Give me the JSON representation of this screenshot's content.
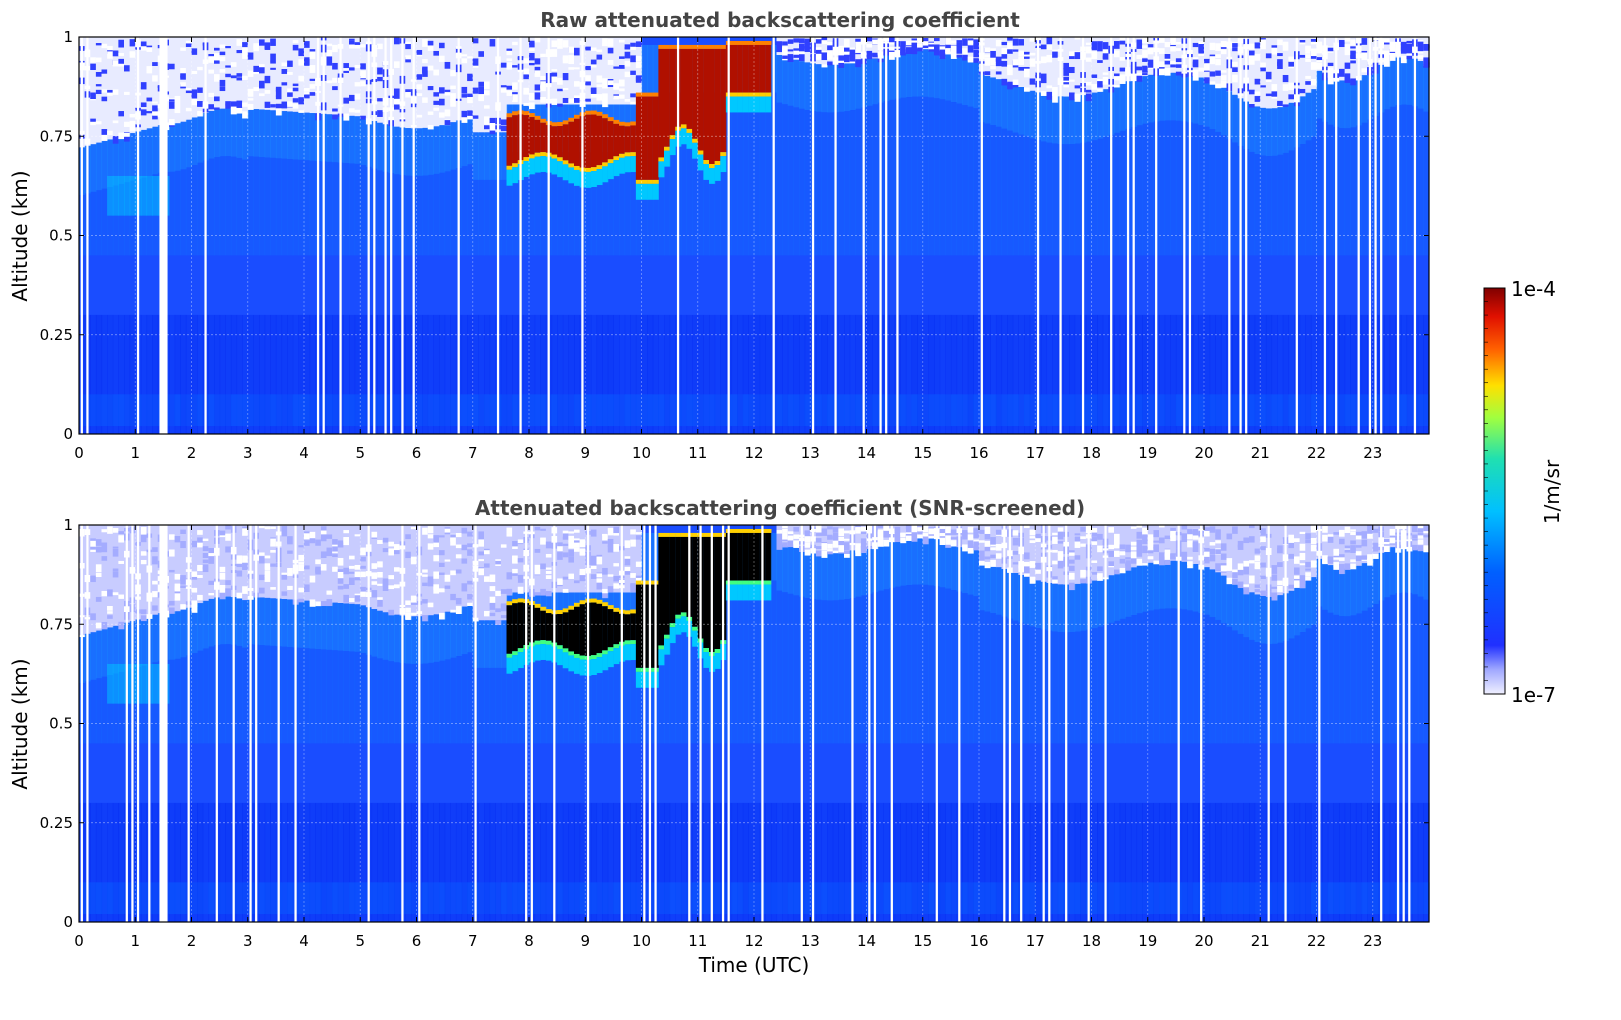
{
  "chart_data": [
    {
      "type": "heatmap",
      "title": "Raw attenuated backscattering coefficient",
      "xlabel": "",
      "ylabel": "Altitude (km)",
      "xlim": [
        0,
        24
      ],
      "ylim": [
        0,
        1
      ],
      "xticks": [
        "0",
        "1",
        "2",
        "3",
        "4",
        "5",
        "6",
        "7",
        "8",
        "9",
        "10",
        "11",
        "12",
        "13",
        "14",
        "15",
        "16",
        "17",
        "18",
        "19",
        "20",
        "21",
        "22",
        "23"
      ],
      "yticks": [
        "0",
        "0.25",
        "0.5",
        "0.75",
        "1"
      ],
      "grid": true,
      "screened": false,
      "cloud_base_km": 0.72,
      "cloud_hours": [
        7.6,
        12.3
      ]
    },
    {
      "type": "heatmap",
      "title": "Attenuated backscattering coefficient (SNR-screened)",
      "xlabel": "Time (UTC)",
      "ylabel": "Altitude (km)",
      "xlim": [
        0,
        24
      ],
      "ylim": [
        0,
        1
      ],
      "xticks": [
        "0",
        "1",
        "2",
        "3",
        "4",
        "5",
        "6",
        "7",
        "8",
        "9",
        "10",
        "11",
        "12",
        "13",
        "14",
        "15",
        "16",
        "17",
        "18",
        "19",
        "20",
        "21",
        "22",
        "23"
      ],
      "yticks": [
        "0",
        "0.25",
        "0.5",
        "0.75",
        "1"
      ],
      "grid": true,
      "screened": true,
      "cloud_base_km": 0.72,
      "cloud_hours": [
        7.6,
        12.3
      ]
    }
  ],
  "colorbar": {
    "label": "1/m/sr",
    "max_label": "1e-4",
    "min_label": "1e-7",
    "colormap": "jet",
    "scale": "log"
  },
  "colors": {
    "background_blue": "#1a4dff",
    "deep_blue": "#0010e0",
    "cyan": "#00c8ff",
    "cloud_red": "#b01000",
    "screened_black": "#000000",
    "title_gray": "#444444"
  }
}
